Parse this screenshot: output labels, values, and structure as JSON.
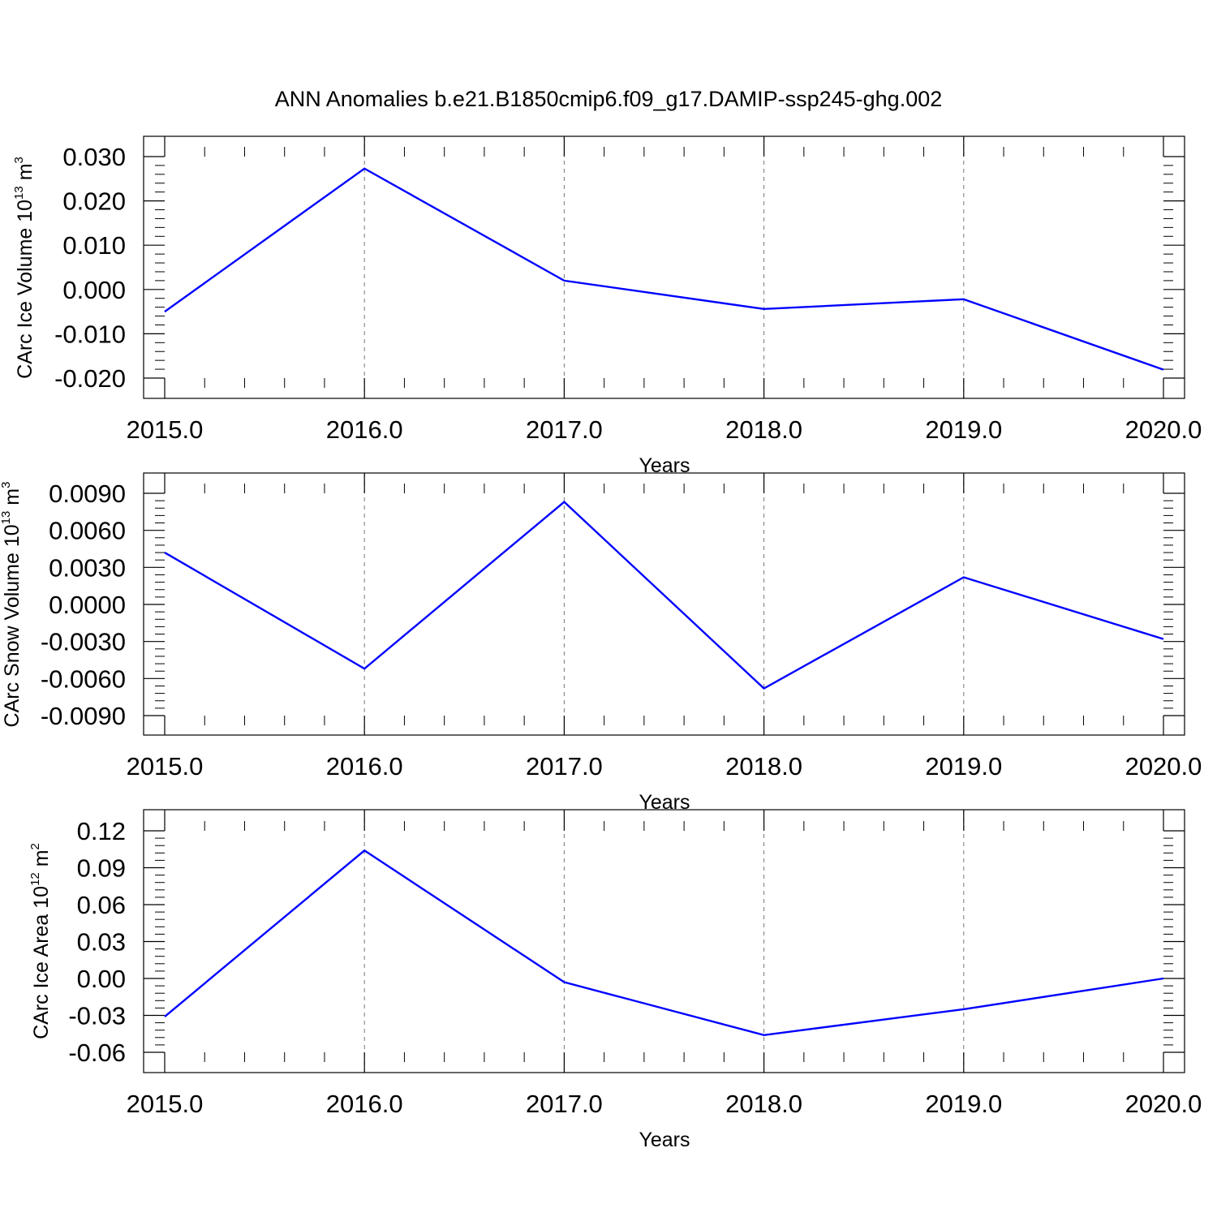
{
  "figure_title": "ANN Anomalies b.e21.B1850cmip6.f09_g17.DAMIP-ssp245-ghg.002",
  "line_color": "#0000ff",
  "chart_data": [
    {
      "type": "line",
      "title": "",
      "xlabel": "Years",
      "ylabel": "CArc Ice Volume 10",
      "ylabel_exponent": "13",
      "ylabel_unit": "m",
      "ylabel_unit_exponent": "3",
      "x": [
        2015,
        2016,
        2017,
        2018,
        2019,
        2020
      ],
      "x_tick_labels": [
        "2015.0",
        "2016.0",
        "2017.0",
        "2018.0",
        "2019.0",
        "2020.0"
      ],
      "y_ticks": [
        0.03,
        0.02,
        0.01,
        0.0,
        -0.01,
        -0.02
      ],
      "y_tick_labels": [
        "0.030",
        "0.020",
        "0.010",
        "0.000",
        "-0.010",
        "-0.020"
      ],
      "ylim": [
        -0.02,
        0.03
      ],
      "xlim": [
        2015,
        2020
      ],
      "grid": "vertical dashed at major x ticks",
      "series": [
        {
          "values": [
            -0.005,
            0.0273,
            0.002,
            -0.0044,
            -0.0022,
            -0.0181
          ]
        }
      ]
    },
    {
      "type": "line",
      "title": "",
      "xlabel": "Years",
      "ylabel": "CArc Snow Volume 10",
      "ylabel_exponent": "13",
      "ylabel_unit": "m",
      "ylabel_unit_exponent": "3",
      "x": [
        2015,
        2016,
        2017,
        2018,
        2019,
        2020
      ],
      "x_tick_labels": [
        "2015.0",
        "2016.0",
        "2017.0",
        "2018.0",
        "2019.0",
        "2020.0"
      ],
      "y_ticks": [
        0.009,
        0.006,
        0.003,
        0.0,
        -0.003,
        -0.006,
        -0.009
      ],
      "y_tick_labels": [
        "0.0090",
        "0.0060",
        "0.0030",
        "0.0000",
        "-0.0030",
        "-0.0060",
        "-0.0090"
      ],
      "ylim": [
        -0.009,
        0.009
      ],
      "xlim": [
        2015,
        2020
      ],
      "grid": "vertical dashed at major x ticks",
      "series": [
        {
          "values": [
            0.0042,
            -0.0052,
            0.0083,
            -0.0068,
            0.0022,
            -0.0028
          ]
        }
      ]
    },
    {
      "type": "line",
      "title": "",
      "xlabel": "Years",
      "ylabel": "CArc Ice Area 10",
      "ylabel_exponent": "12",
      "ylabel_unit": "m",
      "ylabel_unit_exponent": "2",
      "x": [
        2015,
        2016,
        2017,
        2018,
        2019,
        2020
      ],
      "x_tick_labels": [
        "2015.0",
        "2016.0",
        "2017.0",
        "2018.0",
        "2019.0",
        "2020.0"
      ],
      "y_ticks": [
        0.12,
        0.09,
        0.06,
        0.03,
        0.0,
        -0.03,
        -0.06
      ],
      "y_tick_labels": [
        "0.12",
        "0.09",
        "0.06",
        "0.03",
        "0.00",
        "-0.03",
        "-0.06"
      ],
      "ylim": [
        -0.06,
        0.12
      ],
      "xlim": [
        2015,
        2020
      ],
      "grid": "vertical dashed at major x ticks",
      "series": [
        {
          "values": [
            -0.031,
            0.104,
            -0.003,
            -0.046,
            -0.025,
            0.0
          ]
        }
      ]
    }
  ]
}
